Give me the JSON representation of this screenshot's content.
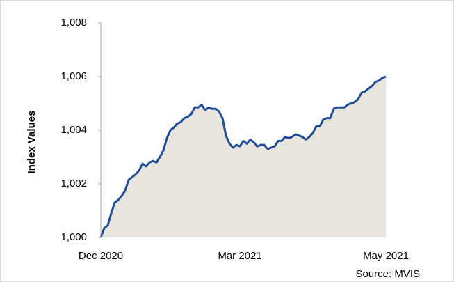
{
  "chart_data": {
    "type": "area",
    "y_label": "Index Values",
    "source": "Source: MVIS",
    "categories": [
      "Dec 2020",
      null,
      null,
      null,
      null,
      null,
      null,
      null,
      null,
      null,
      null,
      null,
      null,
      null,
      null,
      null,
      null,
      null,
      null,
      null,
      null,
      null,
      null,
      null,
      null,
      null,
      null,
      null,
      null,
      null,
      null,
      null,
      null,
      null,
      null,
      null,
      null,
      null,
      null,
      null,
      "Mar 2021",
      null,
      null,
      null,
      null,
      null,
      null,
      null,
      null,
      null,
      null,
      null,
      null,
      null,
      null,
      null,
      null,
      null,
      null,
      null,
      null,
      null,
      null,
      null,
      null,
      null,
      null,
      null,
      null,
      null,
      null,
      null,
      null,
      null,
      null,
      null,
      null,
      null,
      null,
      null,
      null,
      null,
      "May 2021"
    ],
    "values": [
      1000.0,
      1000.35,
      1000.45,
      1000.9,
      1001.3,
      1001.4,
      1001.55,
      1001.75,
      1002.15,
      1002.25,
      1002.35,
      1002.5,
      1002.75,
      1002.65,
      1002.8,
      1002.85,
      1002.8,
      1003.0,
      1003.25,
      1003.7,
      1004.0,
      1004.1,
      1004.25,
      1004.3,
      1004.45,
      1004.5,
      1004.6,
      1004.85,
      1004.85,
      1004.95,
      1004.75,
      1004.85,
      1004.8,
      1004.8,
      1004.7,
      1004.45,
      1003.8,
      1003.5,
      1003.35,
      1003.45,
      1003.4,
      1003.6,
      1003.5,
      1003.65,
      1003.55,
      1003.4,
      1003.45,
      1003.45,
      1003.3,
      1003.35,
      1003.4,
      1003.6,
      1003.6,
      1003.75,
      1003.7,
      1003.75,
      1003.85,
      1003.8,
      1003.75,
      1003.65,
      1003.75,
      1003.9,
      1004.15,
      1004.15,
      1004.4,
      1004.45,
      1004.45,
      1004.8,
      1004.85,
      1004.85,
      1004.85,
      1004.95,
      1005.0,
      1005.05,
      1005.15,
      1005.4,
      1005.45,
      1005.55,
      1005.65,
      1005.8,
      1005.85,
      1005.95,
      1006.0
    ],
    "color": "#1f4e97",
    "fill": "#e8e4de",
    "ylim": [
      1000,
      1008
    ],
    "yticks": [
      {
        "value": 1000,
        "label": "1,000"
      },
      {
        "value": 1002,
        "label": "1,002"
      },
      {
        "value": 1004,
        "label": "1,004"
      },
      {
        "value": 1006,
        "label": "1,006"
      },
      {
        "value": 1008,
        "label": "1,008"
      }
    ],
    "grid": false
  }
}
